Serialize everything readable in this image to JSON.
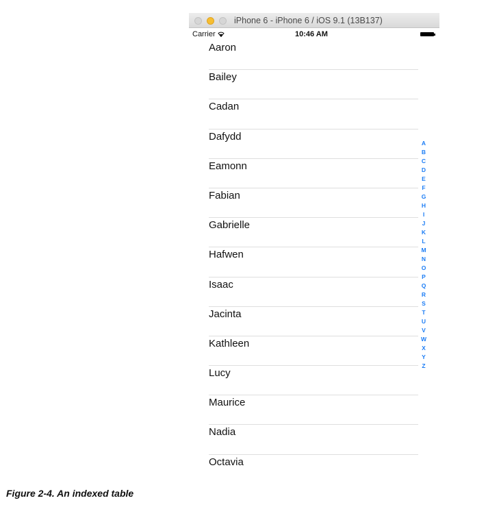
{
  "window": {
    "title": "iPhone 6 - iPhone 6 / iOS 9.1 (13B137)"
  },
  "status_bar": {
    "carrier": "Carrier",
    "time": "10:46 AM",
    "wifi_icon": "wifi-icon",
    "battery_icon": "battery-icon"
  },
  "table": {
    "rows": [
      "Aaron",
      "Bailey",
      "Cadan",
      "Dafydd",
      "Eamonn",
      "Fabian",
      "Gabrielle",
      "Hafwen",
      "Isaac",
      "Jacinta",
      "Kathleen",
      "Lucy",
      "Maurice",
      "Nadia",
      "Octavia"
    ]
  },
  "section_index": {
    "letters": [
      "A",
      "B",
      "C",
      "D",
      "E",
      "F",
      "G",
      "H",
      "I",
      "J",
      "K",
      "L",
      "M",
      "N",
      "O",
      "P",
      "Q",
      "R",
      "S",
      "T",
      "U",
      "V",
      "W",
      "X",
      "Y",
      "Z"
    ],
    "color": "#1a7cf5"
  },
  "caption": "Figure 2-4.  An indexed table"
}
